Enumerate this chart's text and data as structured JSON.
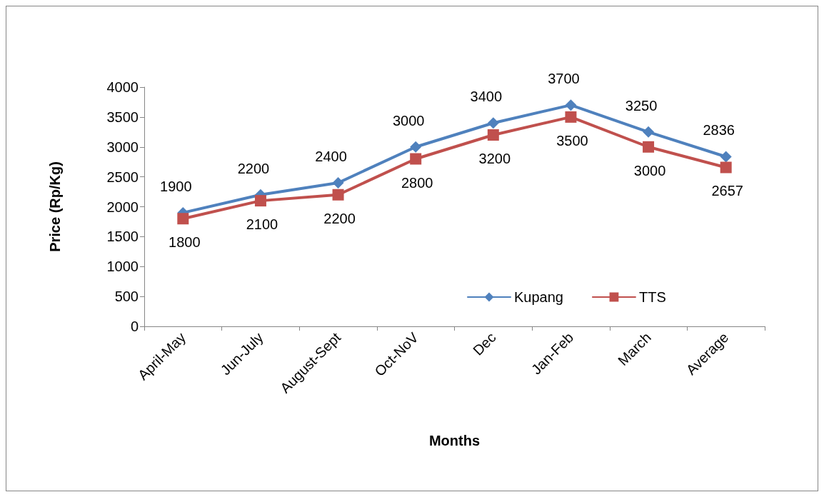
{
  "chart_data": {
    "type": "line",
    "xlabel": "Months",
    "ylabel": "Price (Rp/Kg)",
    "categories": [
      "April-May",
      "Jun-July",
      "August-Sept",
      "Oct-NoV",
      "Dec",
      "Jan-Feb",
      "March",
      "Average"
    ],
    "series": [
      {
        "name": "Kupang",
        "color": "#4f81bd",
        "marker": "diamond",
        "values": [
          1900,
          2200,
          2400,
          3000,
          3400,
          3700,
          3250,
          2836
        ]
      },
      {
        "name": "TTS",
        "color": "#c0504d",
        "marker": "square",
        "values": [
          1800,
          2100,
          2200,
          2800,
          3200,
          3500,
          3000,
          2657
        ]
      }
    ],
    "ylim": [
      0,
      4000
    ],
    "yticks": [
      0,
      500,
      1000,
      1500,
      2000,
      2500,
      3000,
      3500,
      4000
    ],
    "grid": false,
    "legend": "bottom right",
    "data_labels": true
  }
}
